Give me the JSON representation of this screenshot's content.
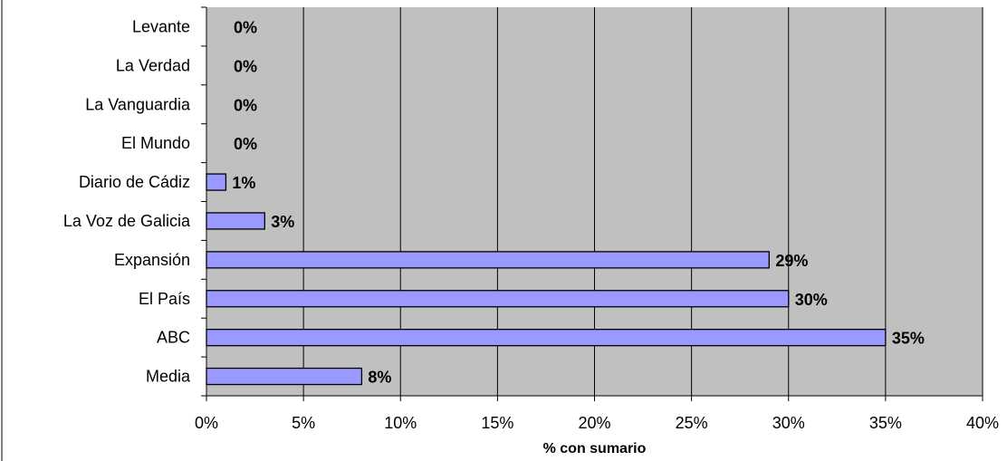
{
  "chart_data": {
    "type": "bar",
    "orientation": "horizontal",
    "categories": [
      "Levante",
      "La Verdad",
      "La Vanguardia",
      "El Mundo",
      "Diario de Cádiz",
      "La Voz de Galicia",
      "Expansión",
      "El País",
      "ABC",
      "Media"
    ],
    "values": [
      0,
      0,
      0,
      0,
      1,
      3,
      29,
      30,
      35,
      8
    ],
    "data_labels": [
      "0%",
      "0%",
      "0%",
      "0%",
      "1%",
      "3%",
      "29%",
      "30%",
      "35%",
      "8%"
    ],
    "x_ticks": [
      "0%",
      "5%",
      "10%",
      "15%",
      "20%",
      "25%",
      "30%",
      "35%",
      "40%"
    ],
    "xlabel": "% con sumario",
    "ylabel": "",
    "title": "",
    "xlim": [
      0,
      40
    ],
    "grid": "vertical",
    "legend": "none",
    "colors": {
      "bar_fill": "#9999ff",
      "bar_stroke": "#000000",
      "plot_background": "#c0c0c0",
      "gridline": "#000000"
    }
  }
}
